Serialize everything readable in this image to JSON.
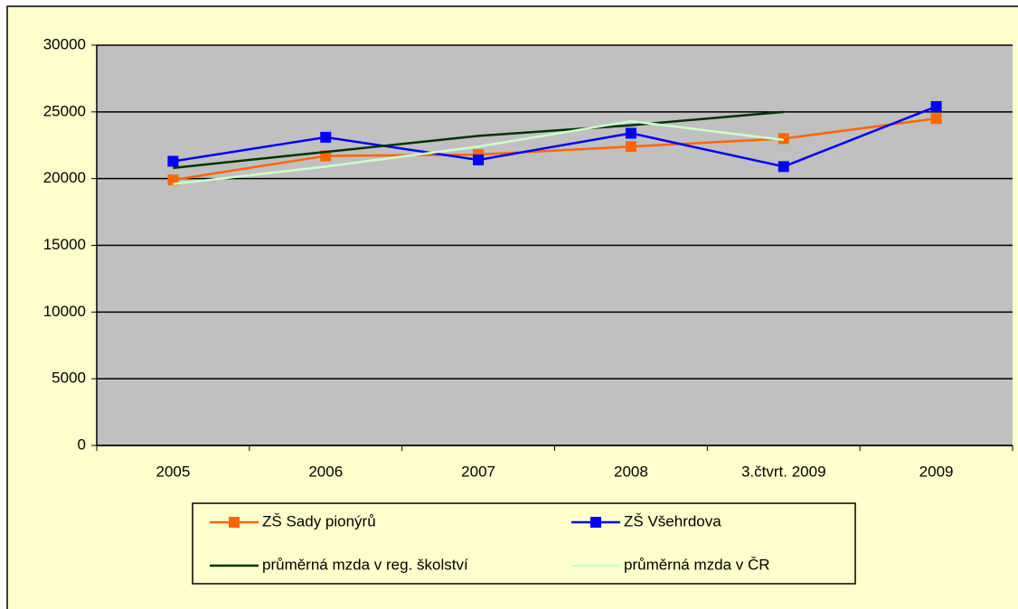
{
  "chart_data": {
    "type": "line",
    "categories": [
      "2005",
      "2006",
      "2007",
      "2008",
      "3.čtvrt. 2009",
      "2009"
    ],
    "series": [
      {
        "name": "ZŠ Sady pionýrů",
        "color": "#ff6600",
        "marker": "square",
        "values": [
          19900,
          21700,
          21800,
          22400,
          23000,
          24500
        ]
      },
      {
        "name": "ZŠ Všehrdova",
        "color": "#0000ff",
        "marker": "square",
        "values": [
          21300,
          23100,
          21400,
          23400,
          20900,
          25400
        ]
      },
      {
        "name": "průměrná mzda v reg. školství",
        "color": "#003300",
        "values": [
          20800,
          22000,
          23200,
          24000,
          25000,
          null
        ]
      },
      {
        "name": "průměrná mzda v ČR",
        "color": "#ccffcc",
        "values": [
          19600,
          20900,
          22400,
          24300,
          22900,
          null
        ]
      }
    ],
    "ylim": [
      0,
      30000
    ],
    "yticks": [
      0,
      5000,
      10000,
      15000,
      20000,
      25000,
      30000
    ],
    "grid": true,
    "background": "#ffffcc",
    "plot_background": "#c0c0c0",
    "legend": "bottom"
  }
}
